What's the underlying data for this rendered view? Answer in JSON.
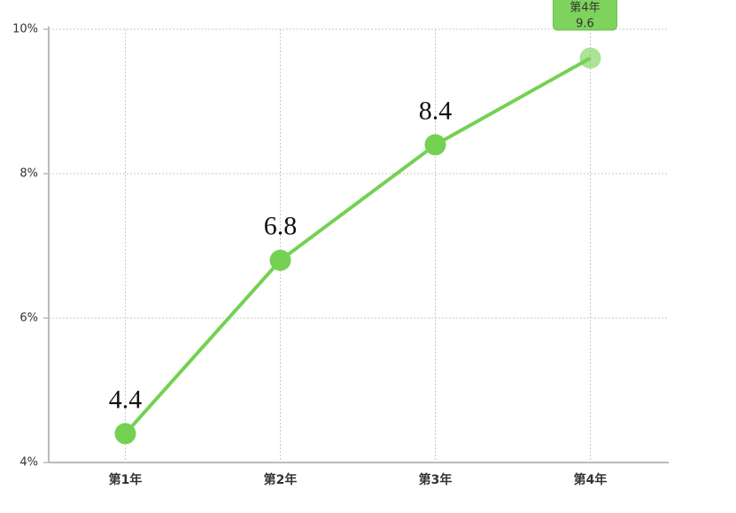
{
  "chart_data": {
    "type": "line",
    "categories": [
      "第1年",
      "第2年",
      "第3年",
      "第4年"
    ],
    "values": [
      4.4,
      6.8,
      8.4,
      9.6
    ],
    "color": "#74d152",
    "ylim": [
      4,
      10
    ],
    "yticks": [
      {
        "value": 4,
        "label": "4%"
      },
      {
        "value": 6,
        "label": "6%"
      },
      {
        "value": 8,
        "label": "8%"
      },
      {
        "value": 10,
        "label": "10%"
      }
    ],
    "grid": true,
    "tooltip_index": 3
  }
}
